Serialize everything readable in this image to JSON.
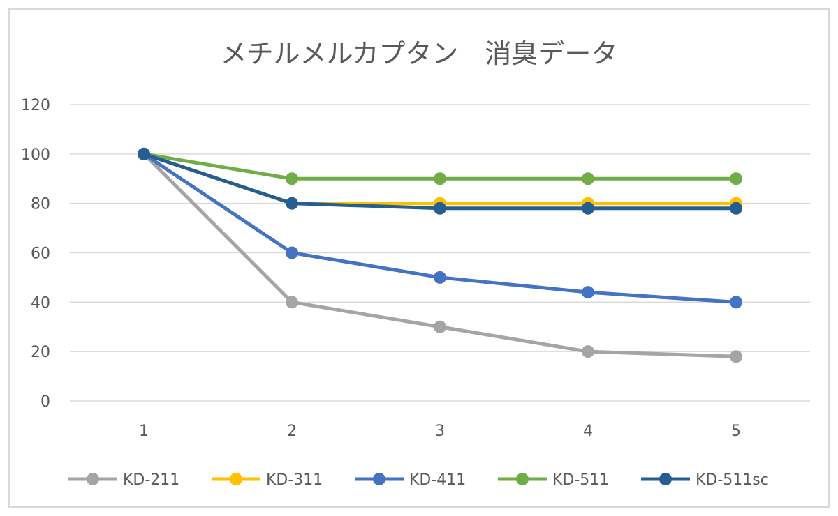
{
  "chart_data": {
    "type": "line",
    "title": "メチルメルカプタン　消臭データ",
    "xlabel": "",
    "ylabel": "",
    "x": [
      "1",
      "2",
      "3",
      "4",
      "5"
    ],
    "ylim": [
      0,
      120
    ],
    "yticks": [
      "0",
      "20",
      "40",
      "60",
      "80",
      "100",
      "120"
    ],
    "grid": true,
    "legend_position": "bottom",
    "series": [
      {
        "name": "KD-211",
        "color": "#a5a5a5",
        "values": [
          100,
          40,
          30,
          20,
          18
        ]
      },
      {
        "name": "KD-311",
        "color": "#ffc000",
        "values": [
          100,
          80,
          80,
          80,
          80
        ]
      },
      {
        "name": "KD-411",
        "color": "#4472c4",
        "values": [
          100,
          60,
          50,
          44,
          40
        ]
      },
      {
        "name": "KD-511",
        "color": "#70ad47",
        "values": [
          100,
          90,
          90,
          90,
          90
        ]
      },
      {
        "name": "KD-511sc",
        "color": "#255e91",
        "values": [
          100,
          80,
          78,
          78,
          78
        ]
      }
    ]
  }
}
